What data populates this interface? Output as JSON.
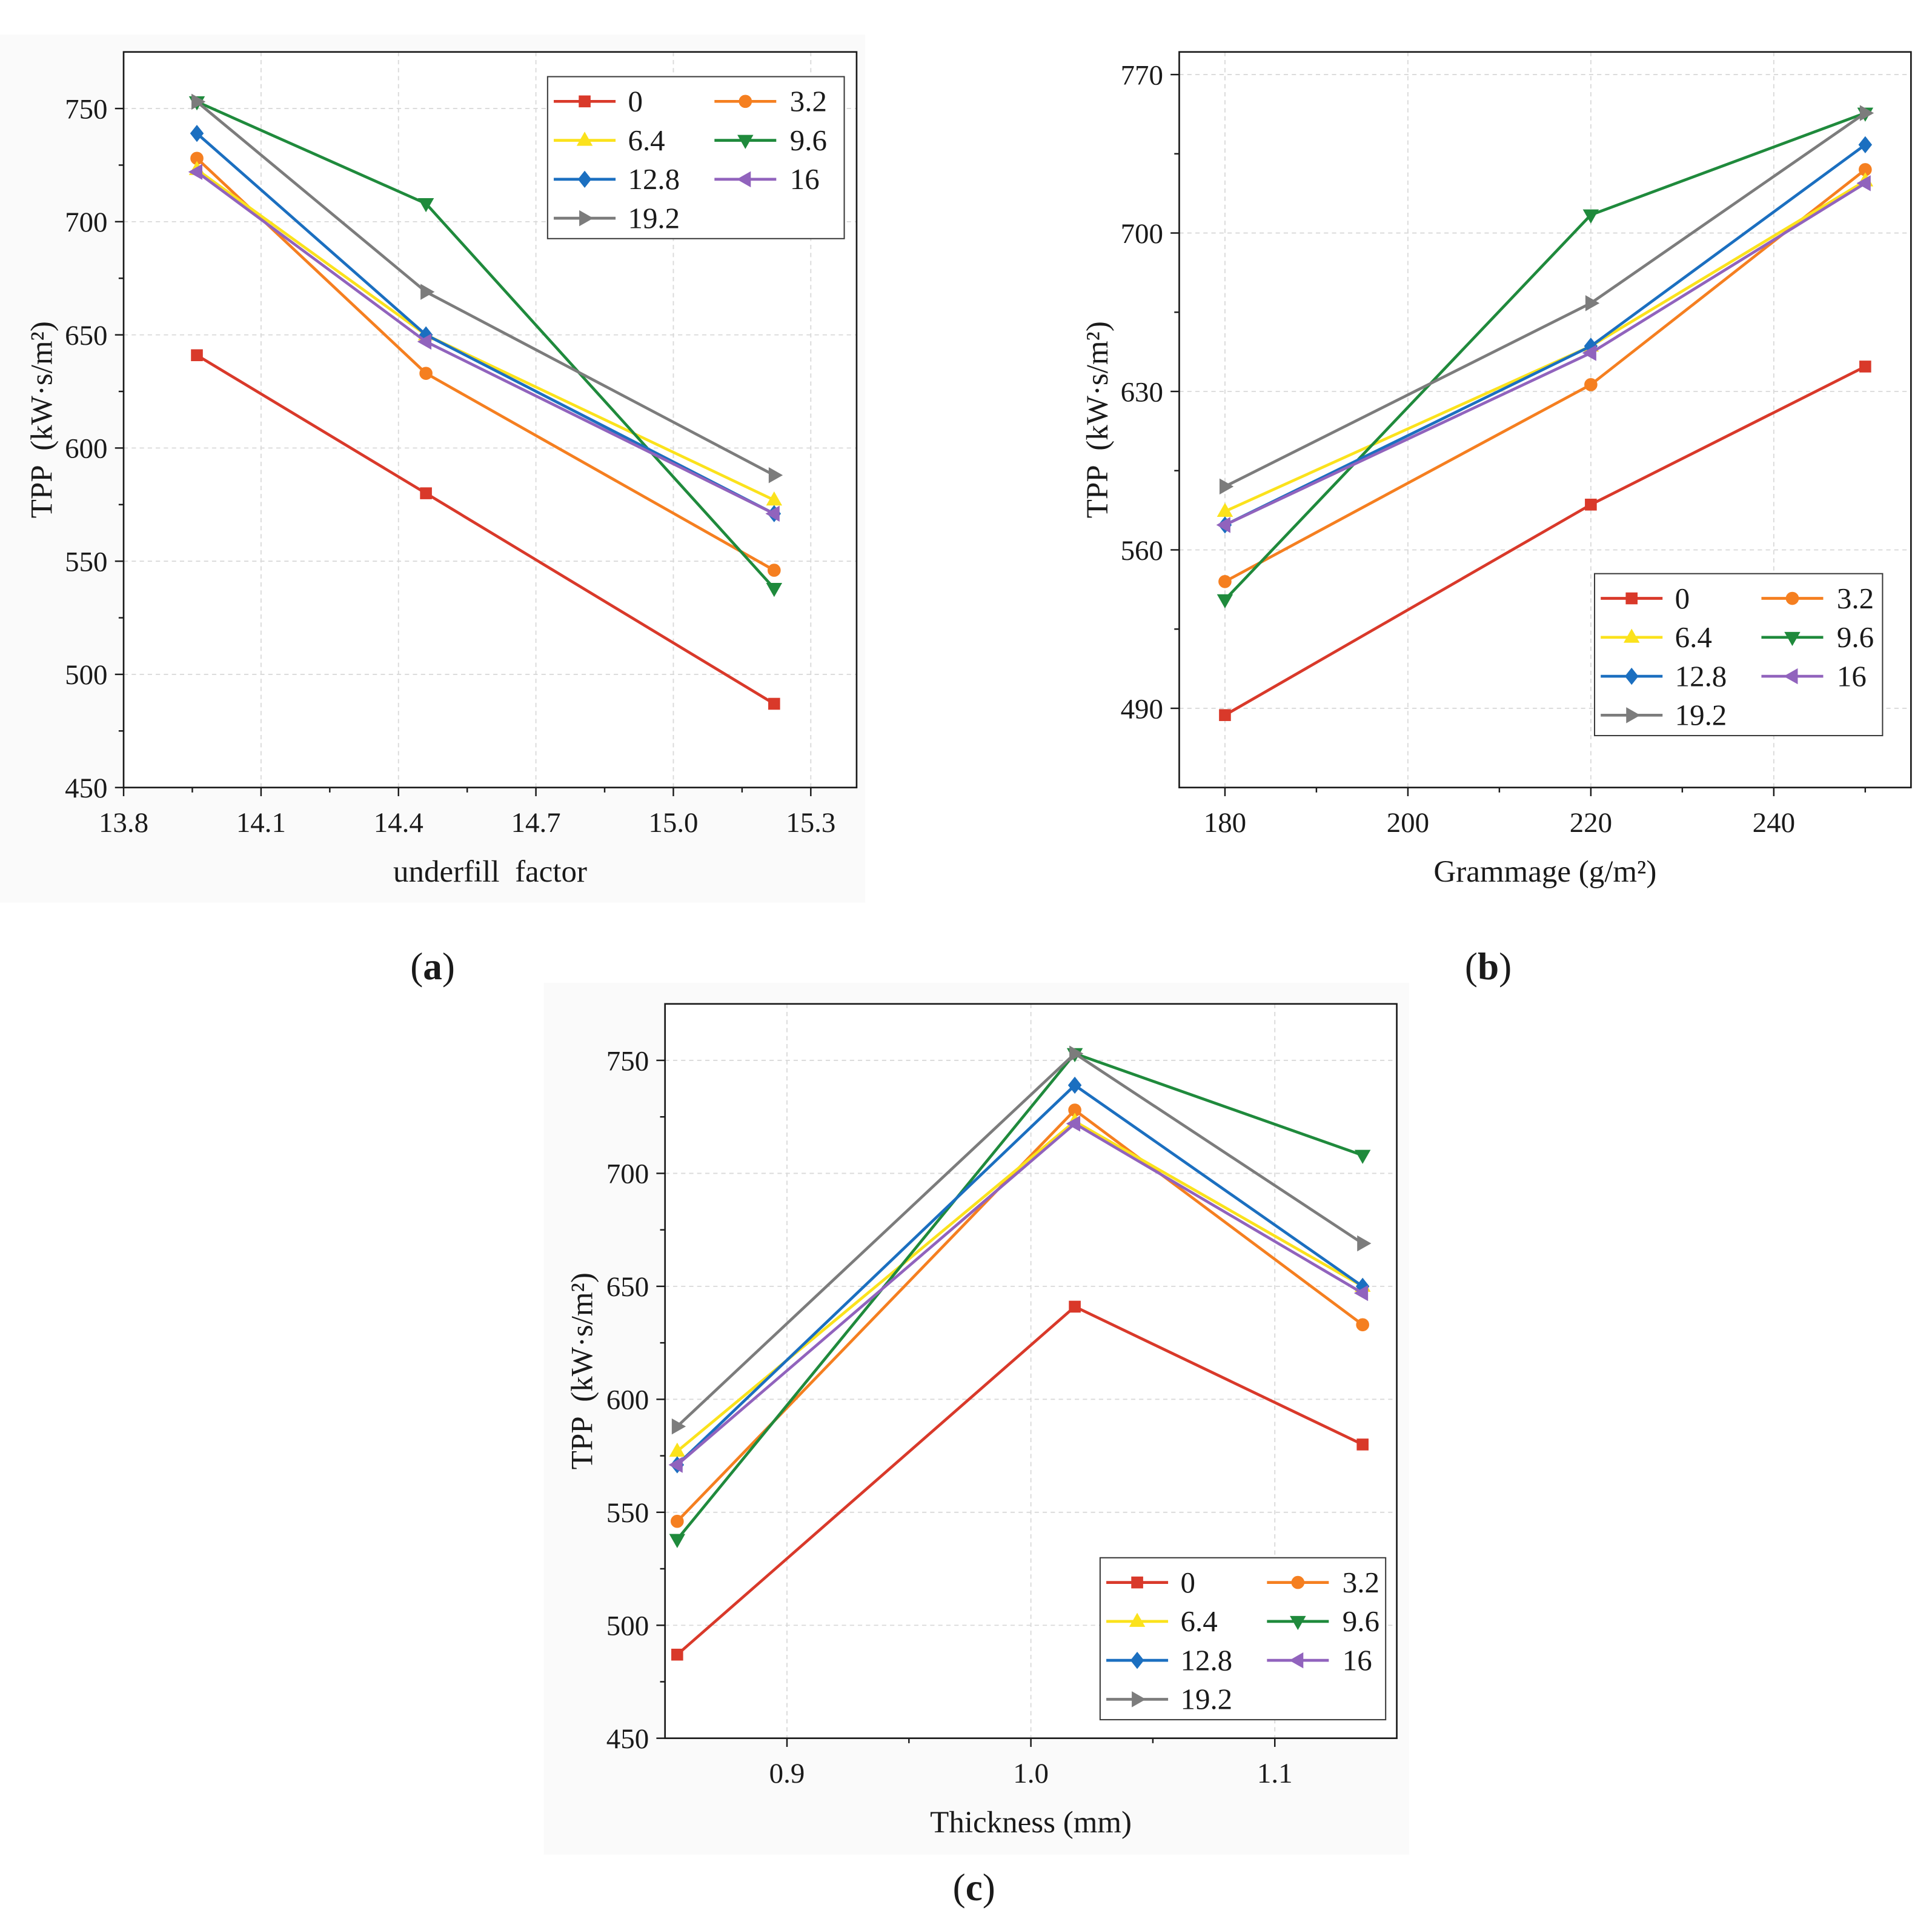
{
  "chart_data": [
    {
      "panel_label": "(a)",
      "type": "line",
      "xlabel": "underfill  factor",
      "ylabel": "TPP  (kW·s/m²)",
      "xlim": [
        13.8,
        15.4
      ],
      "ylim": [
        450,
        775
      ],
      "xticks": [
        13.8,
        14.1,
        14.4,
        14.7,
        15.0,
        15.3
      ],
      "xtick_labels": [
        "13.8",
        "14.1",
        "14.4",
        "14.7",
        "15.0",
        "15.3"
      ],
      "yticks": [
        450,
        500,
        550,
        600,
        650,
        700,
        750
      ],
      "ytick_labels": [
        "450",
        "500",
        "550",
        "600",
        "650",
        "700",
        "750"
      ],
      "x_minor_step": 0.15,
      "y_minor_step": 25,
      "grid": true,
      "legend": "top-right",
      "x": [
        13.96,
        14.46,
        15.22
      ],
      "series": [
        {
          "name": "0",
          "color": "#d9392a",
          "marker": "square",
          "values": [
            641,
            580,
            487
          ]
        },
        {
          "name": "3.2",
          "color": "#f57f20",
          "marker": "circle",
          "values": [
            728,
            633,
            546
          ]
        },
        {
          "name": "6.4",
          "color": "#fbe21c",
          "marker": "triangle-up",
          "values": [
            723,
            650,
            577
          ]
        },
        {
          "name": "9.6",
          "color": "#1f8a3c",
          "marker": "triangle-down",
          "values": [
            753,
            708,
            538
          ]
        },
        {
          "name": "12.8",
          "color": "#1b6fc0",
          "marker": "diamond",
          "values": [
            739,
            650,
            571
          ]
        },
        {
          "name": "16",
          "color": "#9163bd",
          "marker": "triangle-left",
          "values": [
            722,
            647,
            571
          ]
        },
        {
          "name": "19.2",
          "color": "#7c7c7c",
          "marker": "triangle-right",
          "values": [
            753,
            669,
            588
          ]
        }
      ]
    },
    {
      "panel_label": "(b)",
      "type": "line",
      "xlabel": "Grammage (g/m²)",
      "ylabel": "TPP  (kW·s/m²)",
      "xlim": [
        175,
        255
      ],
      "ylim": [
        455,
        780
      ],
      "xticks": [
        180,
        200,
        220,
        240
      ],
      "xtick_labels": [
        "180",
        "200",
        "220",
        "240"
      ],
      "yticks": [
        490,
        560,
        630,
        700,
        770
      ],
      "ytick_labels": [
        "490",
        "560",
        "630",
        "700",
        "770"
      ],
      "x_minor_step": 10,
      "y_minor_step": 35,
      "grid": true,
      "legend": "bottom-right",
      "x": [
        180,
        220,
        250
      ],
      "series": [
        {
          "name": "0",
          "color": "#d9392a",
          "marker": "square",
          "values": [
            487,
            580,
            641
          ]
        },
        {
          "name": "3.2",
          "color": "#f57f20",
          "marker": "circle",
          "values": [
            546,
            633,
            728
          ]
        },
        {
          "name": "6.4",
          "color": "#fbe21c",
          "marker": "triangle-up",
          "values": [
            577,
            650,
            723
          ]
        },
        {
          "name": "9.6",
          "color": "#1f8a3c",
          "marker": "triangle-down",
          "values": [
            538,
            708,
            753
          ]
        },
        {
          "name": "12.8",
          "color": "#1b6fc0",
          "marker": "diamond",
          "values": [
            571,
            650,
            739
          ]
        },
        {
          "name": "16",
          "color": "#9163bd",
          "marker": "triangle-left",
          "values": [
            571,
            647,
            722
          ]
        },
        {
          "name": "19.2",
          "color": "#7c7c7c",
          "marker": "triangle-right",
          "values": [
            588,
            669,
            753
          ]
        }
      ]
    },
    {
      "panel_label": "(c)",
      "type": "line",
      "xlabel": "Thickness (mm)",
      "ylabel": "TPP  (kW·s/m²)",
      "xlim": [
        0.85,
        1.15
      ],
      "ylim": [
        450,
        775
      ],
      "xticks": [
        0.9,
        1.0,
        1.1
      ],
      "xtick_labels": [
        "0.9",
        "1.0",
        "1.1"
      ],
      "yticks": [
        450,
        500,
        550,
        600,
        650,
        700,
        750
      ],
      "ytick_labels": [
        "450",
        "500",
        "550",
        "600",
        "650",
        "700",
        "750"
      ],
      "x_minor_step": 0.05,
      "y_minor_step": 25,
      "grid": true,
      "legend": "bottom-right",
      "x": [
        0.855,
        1.018,
        1.136
      ],
      "series": [
        {
          "name": "0",
          "color": "#d9392a",
          "marker": "square",
          "values": [
            487,
            641,
            580
          ]
        },
        {
          "name": "3.2",
          "color": "#f57f20",
          "marker": "circle",
          "values": [
            546,
            728,
            633
          ]
        },
        {
          "name": "6.4",
          "color": "#fbe21c",
          "marker": "triangle-up",
          "values": [
            577,
            723,
            650
          ]
        },
        {
          "name": "9.6",
          "color": "#1f8a3c",
          "marker": "triangle-down",
          "values": [
            538,
            753,
            708
          ]
        },
        {
          "name": "12.8",
          "color": "#1b6fc0",
          "marker": "diamond",
          "values": [
            571,
            739,
            650
          ]
        },
        {
          "name": "16",
          "color": "#9163bd",
          "marker": "triangle-left",
          "values": [
            571,
            722,
            647
          ]
        },
        {
          "name": "19.2",
          "color": "#7c7c7c",
          "marker": "triangle-right",
          "values": [
            588,
            753,
            669
          ]
        }
      ]
    }
  ]
}
